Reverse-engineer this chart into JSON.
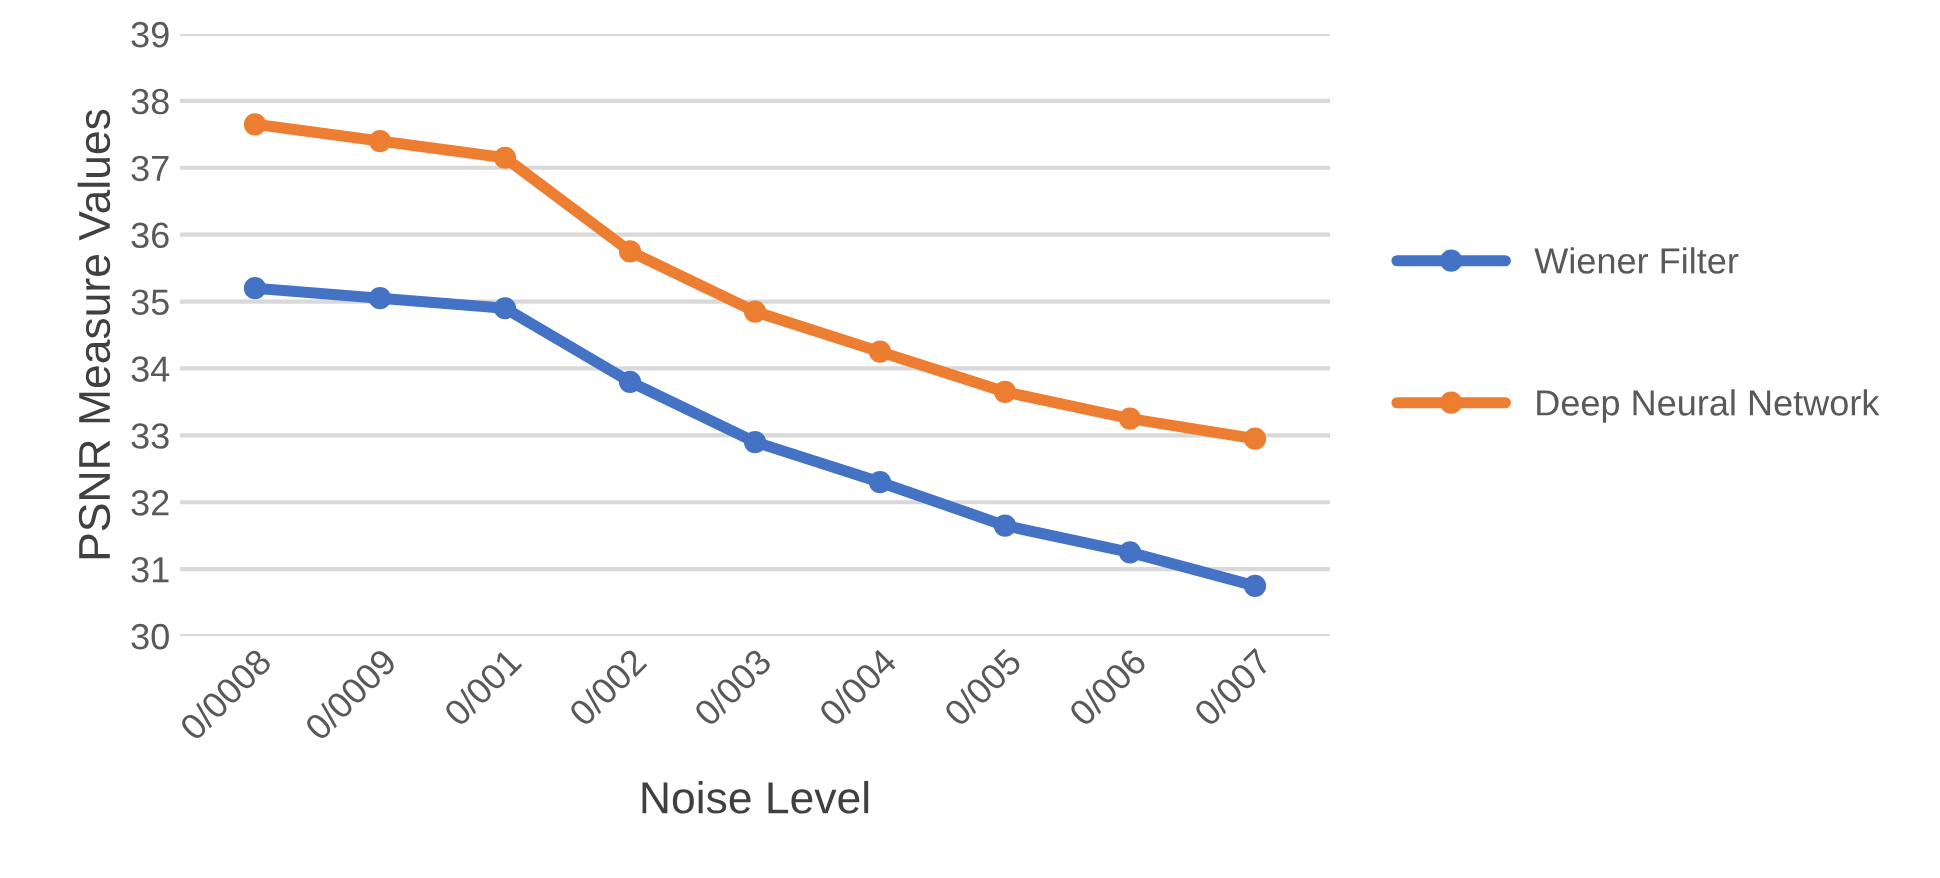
{
  "chart_data": {
    "type": "line",
    "xlabel": "Noise Level",
    "ylabel": "PSNR Measure Values",
    "categories": [
      "0/0008",
      "0/0009",
      "0/001",
      "0/002",
      "0/003",
      "0/004",
      "0/005",
      "0/006",
      "0/007"
    ],
    "series": [
      {
        "name": "Wiener Filter",
        "color": "#4472c4",
        "values": [
          35.2,
          35.05,
          34.9,
          33.8,
          32.9,
          32.3,
          31.65,
          31.25,
          30.75
        ]
      },
      {
        "name": "Deep Neural Network",
        "color": "#ed7d31",
        "values": [
          37.65,
          37.4,
          37.15,
          35.75,
          34.85,
          34.25,
          33.65,
          33.25,
          32.95
        ]
      }
    ],
    "ylim": [
      30,
      39
    ],
    "yticks": [
      30,
      31,
      32,
      33,
      34,
      35,
      36,
      37,
      38,
      39
    ],
    "grid": "y",
    "legend": "right",
    "marker": "circle",
    "line_style": "solid"
  }
}
